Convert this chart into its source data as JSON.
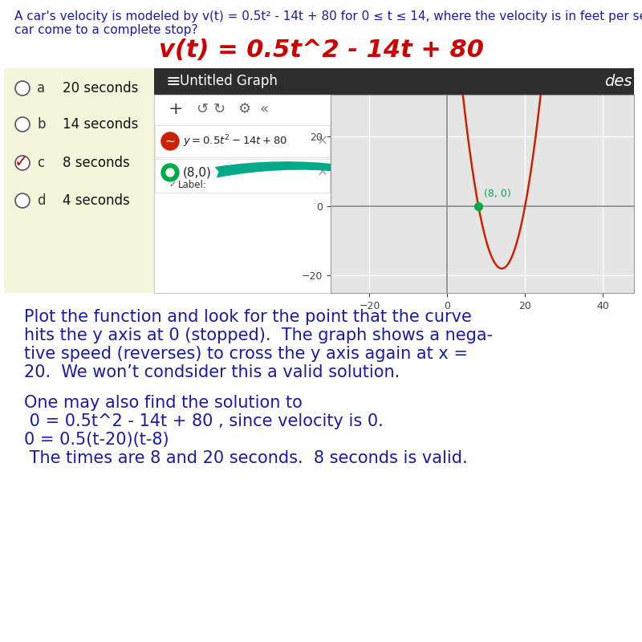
{
  "background_color": "#ffffff",
  "problem_text_line1": "A car's velocity is modeled by v(t) = 0.5t² - 14t + 80 for 0 ≤ t ≤ 14, where the velocity is in feet per second and time is in seconds. When does the",
  "problem_text_line2": "car come to a complete stop?",
  "formula_text": "v(t) = 0.5t^2 - 14t + 80",
  "formula_color": "#cc0000",
  "formula_fontsize": 22,
  "options": [
    {
      "label": "a",
      "text": "20 seconds"
    },
    {
      "label": "b",
      "text": "14 seconds"
    },
    {
      "label": "c",
      "text": "8 seconds",
      "correct": true
    },
    {
      "label": "d",
      "text": "4 seconds"
    }
  ],
  "graph_title": "Untitled Graph",
  "graph_header_color": "#2d2d2d",
  "graph_curve_color": "#cc2200",
  "graph_point_color": "#00aa44",
  "graph_arrow_color": "#00aa88",
  "graph_plot_bg": "#e5e5e5",
  "explanation_para1_line1": "Plot the function and look for the point that the curve",
  "explanation_para1_line2": "hits the y axis at 0 (stopped).  The graph shows a nega-",
  "explanation_para1_line3": "tive speed (reverses) to cross the y axis again at x =",
  "explanation_para1_line4": "20.  We won’t condsider this a valid solution.",
  "explanation_para2_line1": "One may also find the solution to",
  "explanation_para2_line2": " 0 = 0.5t^2 - 14t + 80 , since velocity is 0.",
  "explanation_para2_line3": "0 = 0.5(t-20)(t-8)",
  "explanation_para2_line4": " The times are 8 and 20 seconds.  8 seconds is valid.",
  "explanation_color": "#1a1aaa",
  "explanation_fontsize": 15,
  "problem_text_color": "#1a1aaa",
  "problem_text_fontsize": 11,
  "option_circle_color": "#555555",
  "checkmark_color": "#cc0000",
  "option_fontsize": 13,
  "yellowish_bg": "#f5f5dc",
  "sidebar_bg": "#ffffff",
  "grid_bg": "#e8e8e8"
}
